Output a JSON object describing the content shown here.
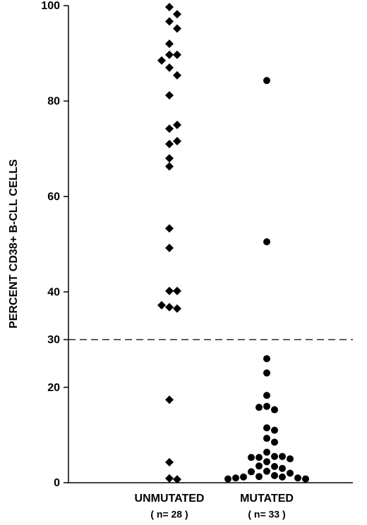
{
  "chart_data": {
    "type": "strip",
    "ylabel": "PERCENT CD38+ B-CLL CELLS",
    "categories": [
      "UNMUTATED",
      "MUTATED"
    ],
    "category_notes": [
      "( n= 28 )",
      "( n= 33 )"
    ],
    "series": [
      {
        "marker": "diamond",
        "color": "#000000",
        "values": [
          99.7,
          98.2,
          96.7,
          95.2,
          92,
          89.7,
          89.7,
          88.5,
          87,
          85.4,
          81.2,
          74.2,
          75,
          71,
          71.6,
          68,
          66.3,
          53.3,
          49.2,
          40.2,
          40.2,
          36.8,
          36.5,
          37.2,
          17.4,
          4.3,
          0.9,
          0.7
        ]
      },
      {
        "marker": "circle",
        "color": "#000000",
        "values": [
          84.3,
          50.5,
          26,
          23,
          18.3,
          16,
          15.3,
          15.8,
          11.5,
          11,
          9.3,
          8.5,
          6.4,
          5.5,
          5.3,
          5.5,
          5.3,
          5,
          4.4,
          3.4,
          3.5,
          3,
          2.4,
          2.3,
          2,
          1.5,
          1.3,
          1.2,
          1.2,
          1.0,
          1.0,
          0.8,
          0.8
        ]
      }
    ],
    "threshold": 30,
    "ylim": [
      0,
      100
    ],
    "yticks": [
      0,
      20,
      30,
      40,
      60,
      80,
      100
    ]
  }
}
